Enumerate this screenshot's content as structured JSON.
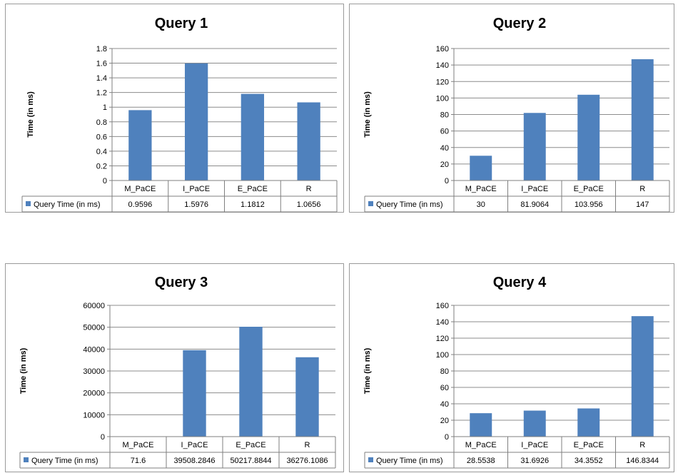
{
  "colors": {
    "bar": "#4f81bd",
    "grid": "#8c8c8c",
    "axis": "#7f7f7f",
    "border": "#9a9a9a"
  },
  "chart_data": [
    {
      "type": "bar",
      "title": "Query 1",
      "ylabel": "Time (in ms)",
      "xlabel": "",
      "categories": [
        "M_PaCE",
        "I_PaCE",
        "E_PaCE",
        "R"
      ],
      "ylim": [
        0,
        1.8
      ],
      "yticks": [
        "0",
        "0.2",
        "0.4",
        "0.6",
        "0.8",
        "1",
        "1.2",
        "1.4",
        "1.6",
        "1.8"
      ],
      "grid": true,
      "legend": "data-table",
      "series": [
        {
          "name": "Query Time (in ms)",
          "values": [
            0.9596,
            1.5976,
            1.1812,
            1.0656
          ],
          "labels": [
            "0.9596",
            "1.5976",
            "1.1812",
            "1.0656"
          ]
        }
      ]
    },
    {
      "type": "bar",
      "title": "Query 2",
      "ylabel": "Time (in ms)",
      "xlabel": "",
      "categories": [
        "M_PaCE",
        "I_PaCE",
        "E_PaCE",
        "R"
      ],
      "ylim": [
        0,
        160
      ],
      "yticks": [
        "0",
        "20",
        "40",
        "60",
        "80",
        "100",
        "120",
        "140",
        "160"
      ],
      "grid": true,
      "legend": "data-table",
      "series": [
        {
          "name": "Query Time (in ms)",
          "values": [
            30,
            81.9064,
            103.956,
            147
          ],
          "labels": [
            "30",
            "81.9064",
            "103.956",
            "147"
          ]
        }
      ]
    },
    {
      "type": "bar",
      "title": "Query 3",
      "ylabel": "Time (in ms)",
      "xlabel": "",
      "categories": [
        "M_PaCE",
        "I_PaCE",
        "E_PaCE",
        "R"
      ],
      "ylim": [
        0,
        60000
      ],
      "yticks": [
        "0",
        "10000",
        "20000",
        "30000",
        "40000",
        "50000",
        "60000"
      ],
      "grid": true,
      "legend": "data-table",
      "series": [
        {
          "name": "Query Time (in ms)",
          "values": [
            71.6,
            39508.2846,
            50217.8844,
            36276.1086
          ],
          "labels": [
            "71.6",
            "39508.2846",
            "50217.8844",
            "36276.1086"
          ]
        }
      ]
    },
    {
      "type": "bar",
      "title": "Query 4",
      "ylabel": "Time (in ms)",
      "xlabel": "",
      "categories": [
        "M_PaCE",
        "I_PaCE",
        "E_PaCE",
        "R"
      ],
      "ylim": [
        0,
        160
      ],
      "yticks": [
        "0",
        "20",
        "40",
        "60",
        "80",
        "100",
        "120",
        "140",
        "160"
      ],
      "grid": true,
      "legend": "data-table",
      "series": [
        {
          "name": "Query Time (in ms)",
          "values": [
            28.5538,
            31.6926,
            34.3552,
            146.8344
          ],
          "labels": [
            "28.5538",
            "31.6926",
            "34.3552",
            "146.8344"
          ]
        }
      ]
    }
  ]
}
